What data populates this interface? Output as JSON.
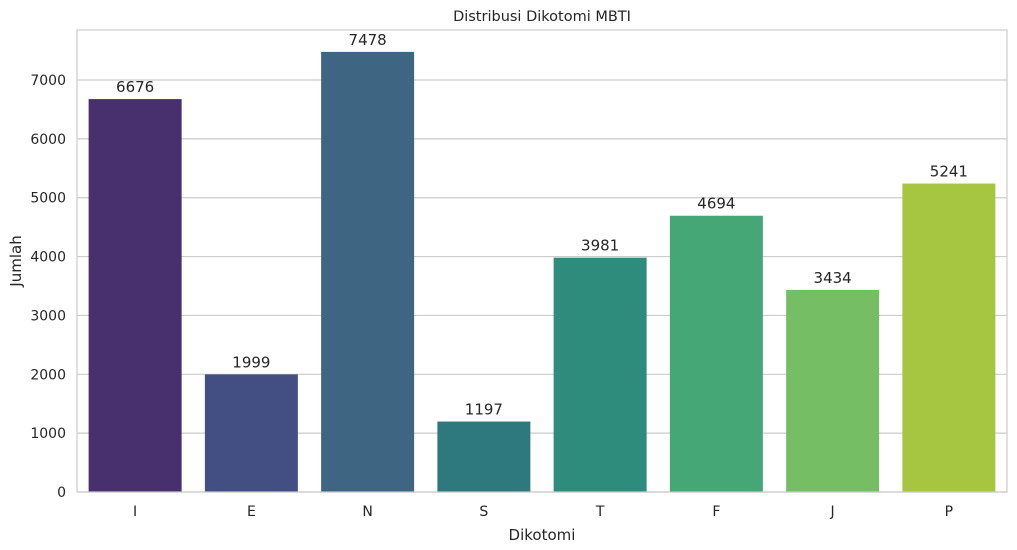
{
  "chart_data": {
    "type": "bar",
    "title": "Distribusi Dikotomi MBTI",
    "xlabel": "Dikotomi",
    "ylabel": "Jumlah",
    "categories": [
      "I",
      "E",
      "N",
      "S",
      "T",
      "F",
      "J",
      "P"
    ],
    "values": [
      6676,
      1999,
      7478,
      1197,
      3981,
      4694,
      3434,
      5241
    ],
    "data_labels": [
      "6676",
      "1999",
      "7478",
      "1197",
      "3981",
      "4694",
      "3434",
      "5241"
    ],
    "ylim": [
      0,
      7850
    ],
    "yticks": [
      0,
      1000,
      2000,
      3000,
      4000,
      5000,
      6000,
      7000
    ],
    "ytick_labels": [
      "0",
      "1000",
      "2000",
      "3000",
      "4000",
      "5000",
      "6000",
      "7000"
    ],
    "grid": "horizontal",
    "colors": [
      "#482f6d",
      "#434f82",
      "#3e6683",
      "#2e797e",
      "#2d8c7c",
      "#46a776",
      "#75be64",
      "#a6c641"
    ],
    "grid_color": "#cccccc",
    "frame_color": "#cccccc"
  }
}
